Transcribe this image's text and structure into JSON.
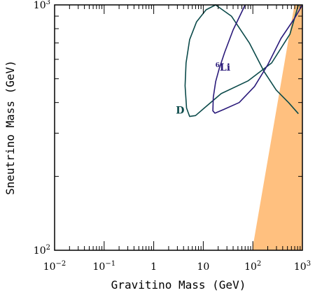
{
  "chart_data": {
    "type": "line",
    "xlabel": "Gravitino Mass (GeV)",
    "ylabel": "Sneutrino Mass (GeV)",
    "x_scale": "log",
    "y_scale": "log",
    "xlim": [
      0.01,
      1000
    ],
    "ylim": [
      100,
      1000
    ],
    "grid": false,
    "x_tick_labels": [
      {
        "value": 0.01,
        "base": "10",
        "exp": "−2"
      },
      {
        "value": 0.1,
        "base": "10",
        "exp": "−1"
      },
      {
        "value": 1,
        "base": "1",
        "exp": ""
      },
      {
        "value": 10,
        "base": "10",
        "exp": ""
      },
      {
        "value": 100,
        "base": "10",
        "exp": "2"
      },
      {
        "value": 1000,
        "base": "10",
        "exp": "3"
      }
    ],
    "y_tick_labels": [
      {
        "value": 100,
        "base": "10",
        "exp": "2"
      },
      {
        "value": 1000,
        "base": "10",
        "exp": "3"
      }
    ],
    "series": [
      {
        "name": "D",
        "color": "#0b4a4a",
        "x": [
          830,
          560,
          240,
          80,
          23,
          10.5,
          7,
          5.3,
          4.6,
          4.3,
          4.5,
          5.3,
          7.3,
          11.4,
          17.7,
          37,
          85,
          168,
          295,
          526,
          830
        ],
        "y": [
          1000,
          760,
          580,
          490,
          435,
          380,
          354,
          351,
          380,
          468,
          580,
          722,
          852,
          955,
          1000,
          900,
          700,
          535,
          450,
          400,
          360
        ]
      },
      {
        "name": "6Li",
        "color": "#2a1a7a",
        "x": [
          70,
          40,
          27,
          21,
          17.8,
          15.9,
          15.6,
          17.2,
          26,
          53,
          108,
          200,
          370,
          690,
          1000
        ],
        "y": [
          1000,
          790,
          640,
          550,
          487,
          420,
          370,
          362,
          375,
          400,
          465,
          570,
          730,
          880,
          1000
        ]
      }
    ],
    "labels": [
      {
        "text": "D",
        "x": 2.8,
        "y": 360,
        "color": "#0b4a4a"
      },
      {
        "sup": "6",
        "text": "Li",
        "x": 17.5,
        "y": 540,
        "color": "#2a1a7a"
      }
    ],
    "region": {
      "color": "#ffc07f",
      "x": [
        97,
        1000,
        1000,
        690
      ],
      "y": [
        100,
        100,
        1000,
        1000
      ]
    }
  }
}
